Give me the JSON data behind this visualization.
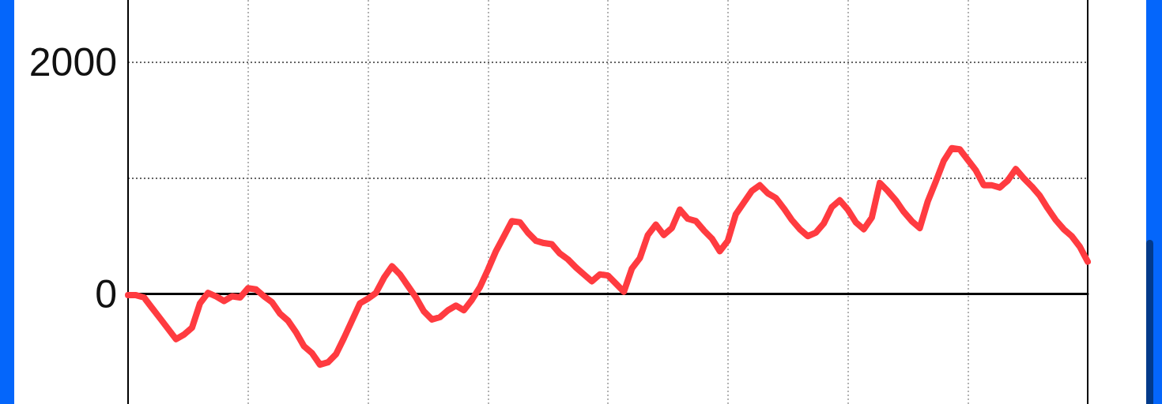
{
  "chart_data": {
    "type": "line",
    "categories": [
      null,
      null,
      null,
      null,
      null,
      null,
      null,
      null,
      null,
      null,
      null,
      null,
      null,
      null,
      null,
      null,
      null,
      null,
      null,
      null,
      null,
      null,
      null,
      null,
      null,
      null,
      null,
      null,
      null,
      null,
      null,
      null,
      null,
      null,
      null,
      null,
      null,
      null,
      null,
      null,
      null,
      null,
      null,
      null,
      null,
      null,
      null,
      null,
      null,
      null,
      null,
      null,
      null,
      null,
      null,
      null,
      null,
      null,
      null,
      null,
      null,
      null,
      null,
      null,
      null,
      null,
      null,
      null,
      null,
      null,
      null,
      null,
      null,
      null,
      null,
      null,
      null,
      null,
      null,
      null,
      null,
      null,
      null,
      null,
      null,
      null,
      null,
      null,
      null,
      null,
      null,
      null,
      null,
      null,
      null,
      null,
      null,
      null,
      null,
      null,
      null,
      null,
      null,
      null,
      null,
      null,
      null,
      null,
      null,
      null,
      null,
      null,
      null,
      null,
      null,
      null,
      null,
      null,
      null,
      null,
      null
    ],
    "values": [
      -10,
      -10,
      -30,
      -120,
      -210,
      -300,
      -390,
      -350,
      -290,
      -80,
      10,
      -20,
      -60,
      -20,
      -30,
      50,
      40,
      -20,
      -70,
      -170,
      -230,
      -330,
      -450,
      -510,
      -610,
      -590,
      -520,
      -380,
      -230,
      -80,
      -40,
      10,
      140,
      240,
      170,
      70,
      -30,
      -150,
      -220,
      -200,
      -140,
      -100,
      -140,
      -50,
      60,
      210,
      370,
      500,
      630,
      620,
      530,
      460,
      440,
      430,
      350,
      300,
      230,
      170,
      110,
      170,
      160,
      90,
      20,
      220,
      310,
      510,
      600,
      510,
      570,
      730,
      650,
      630,
      550,
      480,
      370,
      460,
      690,
      790,
      890,
      940,
      870,
      830,
      740,
      640,
      560,
      500,
      530,
      610,
      750,
      810,
      730,
      620,
      560,
      660,
      960,
      890,
      810,
      710,
      630,
      570,
      800,
      970,
      1150,
      1260,
      1250,
      1160,
      1070,
      940,
      940,
      920,
      980,
      1080,
      1000,
      930,
      850,
      740,
      640,
      560,
      500,
      410,
      280
    ],
    "color": "#ff3b40",
    "ylim": [
      -950,
      2540
    ],
    "yticks": [
      0,
      {
        "value": 1000,
        "label": null
      },
      2000
    ],
    "grid": true,
    "tick_labels": "y",
    "line_style": "solid"
  }
}
